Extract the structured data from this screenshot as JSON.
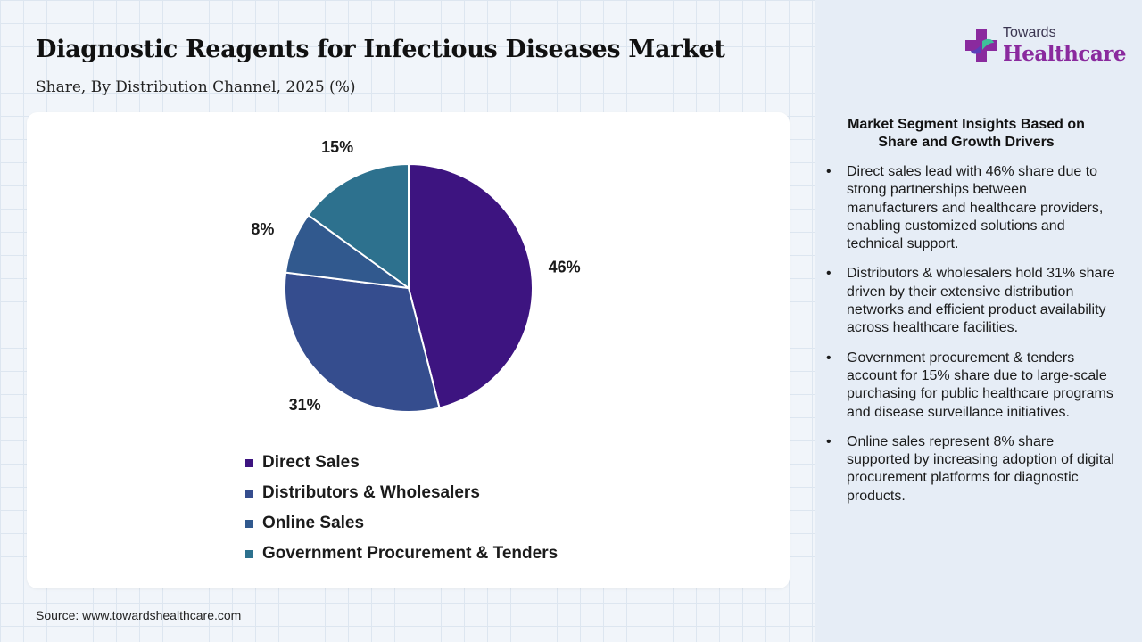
{
  "header": {
    "title": "Diagnostic Reagents for Infectious Diseases Market",
    "subtitle": "Share, By Distribution Channel, 2025 (%)"
  },
  "brand": {
    "top": "Towards",
    "main": "Healthcare",
    "colors": {
      "purple": "#8a2a9e",
      "green": "#3fbf9a",
      "violet": "#5b3fb8"
    }
  },
  "chart_data": {
    "type": "pie",
    "title": "",
    "categories": [
      "Direct Sales",
      "Distributors & Wholesalers",
      "Online Sales",
      "Government Procurement & Tenders"
    ],
    "values": [
      46,
      31,
      8,
      15
    ],
    "slice_order": [
      "Direct Sales",
      "Distributors & Wholesalers",
      "Online Sales",
      "Government Procurement & Tenders"
    ],
    "labels": [
      "46%",
      "31%",
      "8%",
      "15%"
    ],
    "colors": [
      "#3d1480",
      "#354d8e",
      "#31598e",
      "#2d718e"
    ],
    "start": "12 o'clock, clockwise",
    "legend_position": "bottom"
  },
  "insights": {
    "title": "Market Segment Insights Based on Share and Growth Drivers",
    "bullet": "•",
    "items": [
      "Direct sales lead with 46% share due to strong partnerships between manufacturers and healthcare providers, enabling customized solutions and technical support.",
      "Distributors & wholesalers hold 31% share driven by their extensive distribution networks and efficient product availability across healthcare facilities.",
      "Government procurement & tenders account for 15% share due to large-scale purchasing for public healthcare programs and disease surveillance initiatives.",
      "Online sales represent 8% share supported by increasing adoption of digital procurement platforms for diagnostic products."
    ]
  },
  "source": "Source: www.towardshealthcare.com"
}
